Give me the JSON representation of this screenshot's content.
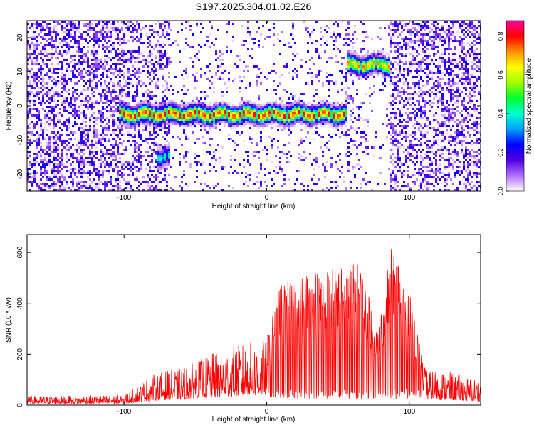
{
  "title": "S197.2025.304.01.02.E26",
  "chart_data": [
    {
      "type": "heatmap",
      "xlabel": "Height of straight line (km)",
      "ylabel": "Frequency (Hz)",
      "xlim": [
        -168,
        150
      ],
      "ylim": [
        -25,
        25
      ],
      "x_ticks": [
        -100,
        0,
        100
      ],
      "y_ticks": [
        -20,
        -10,
        0,
        10,
        20
      ],
      "colorbar": {
        "label": "Normalized spectral amplitude",
        "range": [
          0.0,
          0.88
        ],
        "ticks": [
          0.0,
          0.2,
          0.4,
          0.6,
          0.8
        ],
        "colormap": [
          "#ffffff",
          "#b070ff",
          "#5000e0",
          "#0000ff",
          "#00a0ff",
          "#00ffd0",
          "#00ff30",
          "#a0ff00",
          "#ffff00",
          "#ff9000",
          "#ff0000",
          "#ff00a0"
        ]
      },
      "features": [
        {
          "name": "main trace",
          "x_range": [
            -103,
            57
          ],
          "frequency_hz": -2.5,
          "peak_amplitude": 0.85
        },
        {
          "name": "upper trace",
          "x_range": [
            57,
            86
          ],
          "frequency_hz": 12,
          "peak_amplitude": 0.75
        },
        {
          "name": "lower blob",
          "x_range": [
            -76,
            -68
          ],
          "frequency_hz": -15,
          "peak_amplitude": 0.45
        }
      ]
    },
    {
      "type": "line",
      "xlabel": "Height of straight line (km)",
      "ylabel": "SNR (10 * v/v)",
      "xlim": [
        -168,
        150
      ],
      "ylim": [
        0,
        670
      ],
      "x_ticks": [
        -100,
        0,
        100
      ],
      "y_ticks": [
        0,
        200,
        400,
        600
      ],
      "series_color": "#ff0000",
      "envelope": [
        {
          "x": -168,
          "y": 35
        },
        {
          "x": -100,
          "y": 40
        },
        {
          "x": -80,
          "y": 120
        },
        {
          "x": -60,
          "y": 150
        },
        {
          "x": -40,
          "y": 200
        },
        {
          "x": -20,
          "y": 240
        },
        {
          "x": 0,
          "y": 260
        },
        {
          "x": 10,
          "y": 480
        },
        {
          "x": 30,
          "y": 530
        },
        {
          "x": 50,
          "y": 540
        },
        {
          "x": 65,
          "y": 560
        },
        {
          "x": 72,
          "y": 420
        },
        {
          "x": 78,
          "y": 300
        },
        {
          "x": 88,
          "y": 640
        },
        {
          "x": 100,
          "y": 480
        },
        {
          "x": 110,
          "y": 150
        },
        {
          "x": 130,
          "y": 130
        },
        {
          "x": 150,
          "y": 100
        }
      ]
    }
  ]
}
